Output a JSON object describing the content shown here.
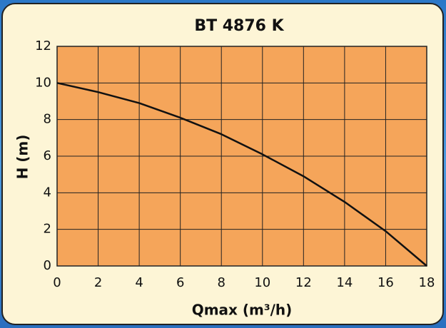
{
  "chart_data": {
    "type": "line",
    "title": "BT 4876 K",
    "x_label": "Qmax (m³/h)",
    "y_label": "H (m)",
    "x": [
      0,
      2,
      4,
      6,
      8,
      10,
      12,
      14,
      16,
      18
    ],
    "series": [
      {
        "name": "BT 4876 K",
        "color": "#111111",
        "values": [
          10,
          9.5,
          8.9,
          8.1,
          7.2,
          6.1,
          4.9,
          3.5,
          1.9,
          0
        ]
      }
    ],
    "xlim": [
      0,
      18
    ],
    "xticks": [
      0,
      2,
      4,
      6,
      8,
      10,
      12,
      14,
      16,
      18
    ],
    "ylim": [
      0,
      12
    ],
    "yticks": [
      0,
      2,
      4,
      6,
      8,
      10,
      12
    ],
    "grid": true,
    "plot_color": "#f5a55a"
  }
}
